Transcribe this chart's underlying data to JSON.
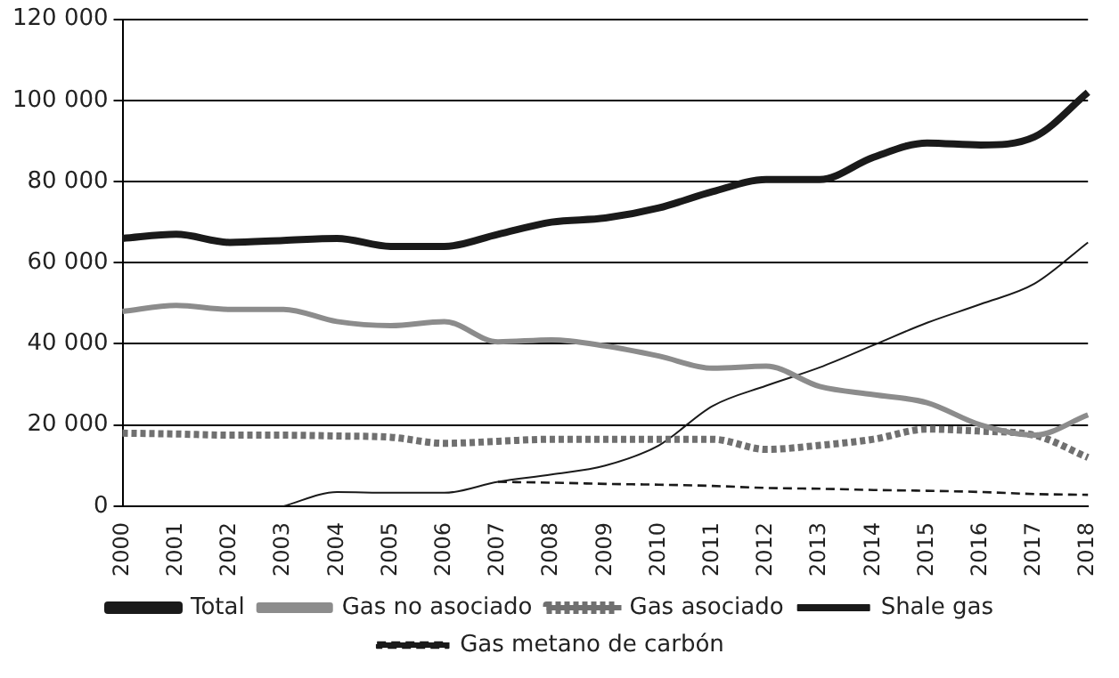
{
  "chart_data": {
    "type": "line",
    "categories": [
      "2000",
      "2001",
      "2002",
      "2003",
      "2004",
      "2005",
      "2006",
      "2007",
      "2008",
      "2009",
      "2010",
      "2011",
      "2012",
      "2013",
      "2014",
      "2015",
      "2016",
      "2017",
      "2018"
    ],
    "ylim": [
      0,
      120000
    ],
    "yticks": [
      {
        "value": 0,
        "label": "0"
      },
      {
        "value": 20000,
        "label": "20 000"
      },
      {
        "value": 40000,
        "label": "40 000"
      },
      {
        "value": 60000,
        "label": "60 000"
      },
      {
        "value": 80000,
        "label": "80 000"
      },
      {
        "value": 100000,
        "label": "100 000"
      },
      {
        "value": 120000,
        "label": "120 000"
      }
    ],
    "grid": "y",
    "legend": "bottom",
    "marker": "none",
    "series": [
      {
        "name": "Total",
        "color": "#1a1a1a",
        "line_style": "solid",
        "values": [
          66000,
          67000,
          65000,
          65500,
          66000,
          64000,
          64000,
          67000,
          70000,
          71000,
          73500,
          77500,
          80500,
          80500,
          86000,
          89500,
          89000,
          91000,
          102000
        ]
      },
      {
        "name": "Gas no asociado",
        "color": "#8c8c8c",
        "line_style": "solid",
        "values": [
          48000,
          49500,
          48500,
          48500,
          45500,
          44500,
          45500,
          40500,
          41000,
          39500,
          37000,
          34000,
          34500,
          29500,
          27500,
          25500,
          20000,
          17500,
          22500
        ]
      },
      {
        "name": "Gas asociado",
        "color": "#707070",
        "line_style": "dotted",
        "values": [
          18000,
          17800,
          17500,
          17500,
          17300,
          17000,
          15500,
          16000,
          16500,
          16500,
          16500,
          16500,
          14000,
          15000,
          16500,
          19000,
          18500,
          17500,
          12000
        ]
      },
      {
        "name": "Shale gas",
        "color": "#1a1a1a",
        "line_style": "solid",
        "values": [
          null,
          null,
          null,
          0,
          3500,
          3300,
          3300,
          6000,
          7800,
          10000,
          15000,
          24700,
          29700,
          34200,
          39700,
          45200,
          49800,
          54800,
          65000
        ]
      },
      {
        "name": "Gas metano de carbón",
        "color": "#1a1a1a",
        "line_style": "dashed",
        "values": [
          null,
          null,
          null,
          null,
          null,
          null,
          null,
          6000,
          5800,
          5500,
          5300,
          5000,
          4500,
          4300,
          4000,
          3800,
          3500,
          3000,
          2800
        ]
      }
    ]
  }
}
